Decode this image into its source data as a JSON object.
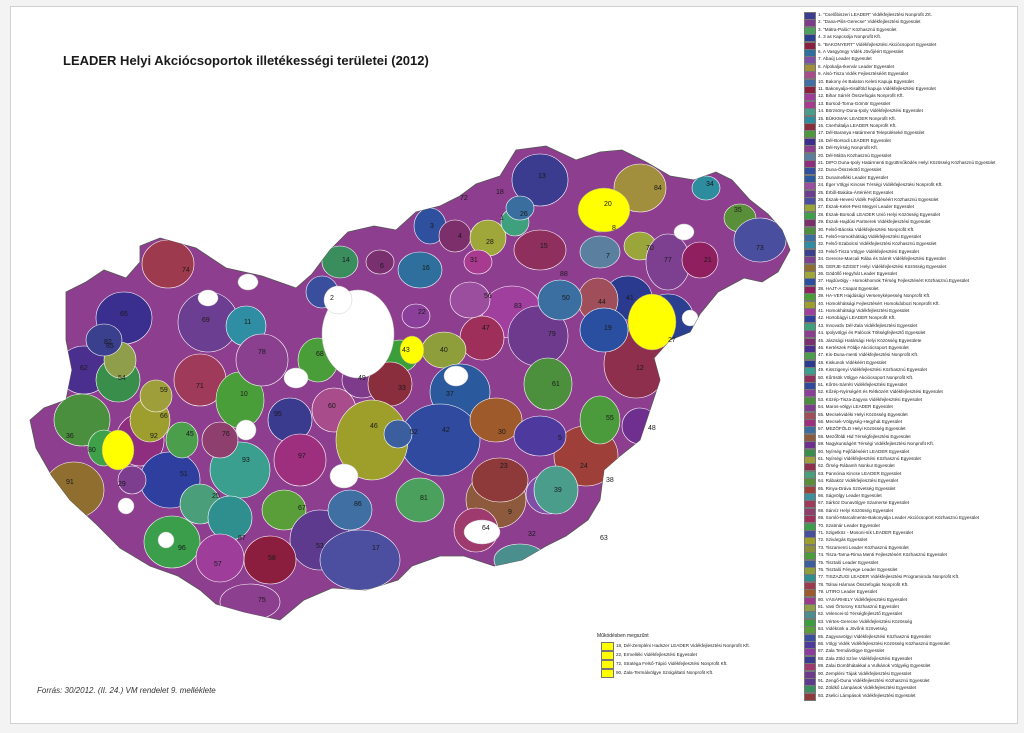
{
  "map": {
    "title": "LEADER Helyi Akciócsoportok illetékességi területei (2012)",
    "source": "Forrás: 30/2012. (II. 24.) VM rendelet 9. melléklete",
    "process_title": "Működésben megszűnt",
    "process_items": [
      {
        "label": "18, Dél-Zempléni Hadszer LEADER Vidékfejlesztési Nonprofit Kft.",
        "color": "#ffff00"
      },
      {
        "label": "22, Ermelléki Vidékfejlesztési Egyesület",
        "color": "#ffff00"
      },
      {
        "label": "72, Stratéga Felső-Tápió Vidékfejlesztési Nonprofit Kft.",
        "color": "#ffff00"
      },
      {
        "label": "90, Zala-Termálvölgye Szolgáltató Nonprofit Kft.",
        "color": "#ffff00"
      }
    ],
    "region_labels": [
      "13",
      "84",
      "34",
      "3",
      "4",
      "28",
      "1",
      "15",
      "26",
      "35",
      "73",
      "74",
      "2",
      "14",
      "16",
      "31",
      "7",
      "70",
      "77",
      "83",
      "41",
      "44",
      "12",
      "47",
      "40",
      "43",
      "79",
      "27",
      "20",
      "65",
      "69",
      "11",
      "68",
      "62",
      "36",
      "54",
      "71",
      "10",
      "85",
      "95",
      "49",
      "60",
      "33",
      "37",
      "61",
      "19",
      "78",
      "42",
      "23",
      "24",
      "46",
      "30",
      "5",
      "9",
      "39",
      "38",
      "92",
      "80",
      "91",
      "51",
      "93",
      "97",
      "25",
      "96",
      "87",
      "67",
      "53",
      "58",
      "57",
      "75",
      "17",
      "82",
      "66",
      "45",
      "29",
      "59",
      "76",
      "52",
      "32",
      "64",
      "81",
      "86",
      "55",
      "56",
      "50",
      "21",
      "6",
      "22",
      "48",
      "63",
      "72",
      "18",
      "88",
      "8"
    ],
    "legend": [
      {
        "label": "1. \"Cselőbiszeri LEADER\" Vidékfejlesztési Nonprofit Zrt.",
        "color": "#3b3b8f"
      },
      {
        "label": "2. \"Dana-Pilis-Gerecse\" Vidékfejlesztési Egyesület",
        "color": "#7e3b8c"
      },
      {
        "label": "3. \"Mátra-Palóc\" Közhasznú Egyesület",
        "color": "#4aa05c"
      },
      {
        "label": "4. 3 as Kapcsolja Nonprofit Kft.",
        "color": "#2a3f8f"
      },
      {
        "label": "5. \"BAKONYERT\" Vidékfejlesztési Akciócsoport Egyesület",
        "color": "#8b1e3f"
      },
      {
        "label": "6. A Vasgyöngy Vidék Jövőjéért Egyesület",
        "color": "#2e6f9e"
      },
      {
        "label": "7. Abaúj Leader Egyesület",
        "color": "#7f4fa8"
      },
      {
        "label": "8. Alpokalja-Ikervár Leader Egyesület",
        "color": "#a28f3e"
      },
      {
        "label": "9. Alsó-Tisza Vidék Fejlesztéséért Egyesület",
        "color": "#a84c8c"
      },
      {
        "label": "10. Bakony és Balaton Keleti Kapuja Egyesület",
        "color": "#3f6fa3"
      },
      {
        "label": "11. Bakonyalja-Kisalföld kapuja Vidékfejlesztési Egyesület",
        "color": "#8c1f3c"
      },
      {
        "label": "12. Bihar Sárrét Összefogás Nonprofit Kft.",
        "color": "#9e3e9a"
      },
      {
        "label": "13. Borsod-Torna-Gömör Egyesület",
        "color": "#a83b8f"
      },
      {
        "label": "14. Börzsöny-Duna-Ipoly Vidékfejlesztési Egyesület",
        "color": "#4a9d8a"
      },
      {
        "label": "15. BÜKKMAK LEADER Nonprofit Kft.",
        "color": "#2d8c9e"
      },
      {
        "label": "16. Cserhátalja LEADER Nonprofit Kft.",
        "color": "#8a2d3d"
      },
      {
        "label": "17. Dél-Baranya Határmenti Településeké Egyesület",
        "color": "#4b9b3d"
      },
      {
        "label": "18. Dél-Borsodi LEADER Egyesület",
        "color": "#3a2f8f"
      },
      {
        "label": "19. Dél-Nyírség Nonprofit Kft.",
        "color": "#8d3f8f"
      },
      {
        "label": "20. Dél-Mátra Közhasznú Egyesület",
        "color": "#5b7f9e"
      },
      {
        "label": "21. DIPO Duna-Ipoly Határmenti Együttműködés Helyi Közösség Közhasznú Egyesület",
        "color": "#8f2d7e"
      },
      {
        "label": "22. Duna-Összekötő Egyesület",
        "color": "#2f4f9f"
      },
      {
        "label": "23. Dunamelléki Leader Egyesület",
        "color": "#2a5a9d"
      },
      {
        "label": "24. Éger Völgyi Kincsei Térségi Vidékfejlesztési Nonprofit Kft.",
        "color": "#9c4e9e"
      },
      {
        "label": "25. Érből-Bakáta-Ártéréért Egyesület",
        "color": "#6b3e91"
      },
      {
        "label": "26. Észak-Hevesi Vidék Fejlődéséért Közhasznú Egyesület",
        "color": "#4c4ea0"
      },
      {
        "label": "27. Észak-Kelet-Pest Megyei Leader Egyesület",
        "color": "#9aa63a"
      },
      {
        "label": "28. Észak-Borsodi LEADER Unió Helyi Közösség Egyesület",
        "color": "#3fa04a"
      },
      {
        "label": "29. Észak-Hajdúsi Partnerek Vidékfejlesztési Egyesület",
        "color": "#7d2f6b"
      },
      {
        "label": "30. Felső-Bácska Vidékfejlesztési Nonprofit Kft.",
        "color": "#4c8f3d"
      },
      {
        "label": "31. Felső-Homokhátság Vidékfejlesztési Egyesület",
        "color": "#3b6fa2"
      },
      {
        "label": "32. Felső-Szabolcsi Vidékfejlesztési Közhasznú Egyesület",
        "color": "#2f8ea3"
      },
      {
        "label": "33. Felső-Tisza Völgye Vidékfejlesztési Egyesület",
        "color": "#3a3f8e"
      },
      {
        "label": "34. Gerecse-Marcali Rába és Sárrét Vidékfejlesztési Egyesület",
        "color": "#7d3f8f"
      },
      {
        "label": "35. GERJE-SZIGET Helyi Vidékfejlesztési Közösség Egyesület",
        "color": "#8f6e2f"
      },
      {
        "label": "36. Gödöllő Hegyhát Leader Egyesület",
        "color": "#9fa63a"
      },
      {
        "label": "37. Hajdúvölgy - Homokhomok Térség Fejlesztésért Közhasznú Egyesület",
        "color": "#2b4fa0"
      },
      {
        "label": "38. HAJT-A Csapat Egyesület",
        "color": "#8f1f5e"
      },
      {
        "label": "39. HA-VER Hajdúsági Versenyképesség Nonprofit Kft.",
        "color": "#4a9e3a"
      },
      {
        "label": "40. Homokhátsági Fejlesztésért Homokdobozi Nonprofit Kft.",
        "color": "#9e9e2f"
      },
      {
        "label": "41. Homokhátsági Vidékfejlesztési Egyesület",
        "color": "#a03f9e"
      },
      {
        "label": "42. Hortobágyi LEADER Nonprofit Kft.",
        "color": "#2f3fa0"
      },
      {
        "label": "43. Innovatív Dél-Zala Vidékfejlesztési Egyesület",
        "color": "#3fa07e"
      },
      {
        "label": "44. Ipolyvölgyi és Palócok Töltségfejlesztő Egyesület",
        "color": "#8a3f8f"
      },
      {
        "label": "45. Jászsági Határsági Helyi Közösség Egyesülete",
        "color": "#7a2f6e"
      },
      {
        "label": "46. Kertészek Földje Akciócsoport Egyesület",
        "color": "#4b2f8f"
      },
      {
        "label": "47. Kis-Duna-menti Vidékfejlesztési Nonprofit Kft.",
        "color": "#4a9e4c"
      },
      {
        "label": "48. Kiskunok Vidékéért Egyesület",
        "color": "#2a3a8e"
      },
      {
        "label": "49. Kisszigenyi Vidékfejlesztési Közhasznú Egyesület",
        "color": "#3b9f8f"
      },
      {
        "label": "50. Kőrösök Völgye Akciócsoport Nonprofit Kft.",
        "color": "#8e2f5e"
      },
      {
        "label": "51. Kőrös-Sárréti Vidékfejlesztési Egyesület",
        "color": "#2f4a9e"
      },
      {
        "label": "52. Kőzép-Nyírségért és Rétközért Vidékfejlesztési Egyesület",
        "color": "#8c3f9a"
      },
      {
        "label": "53. Közép-Tisza-Zagyva Vidékfejlesztési Egyesület",
        "color": "#4a8f3e"
      },
      {
        "label": "54. Maros-völgyi LEADER Egyesület",
        "color": "#7e3e8f"
      },
      {
        "label": "55. Mecsekvidéki Helyi Közösség Egyesület",
        "color": "#9f4e5a"
      },
      {
        "label": "56. Mecsek-Völgység-Hegyhát Egyesület",
        "color": "#9e2f7e"
      },
      {
        "label": "57. MEZÖFÖLD Helyi Közösség Egyesület",
        "color": "#3a6e9e"
      },
      {
        "label": "58. Mezőföldi Hid Térségfejlesztési Egyesület",
        "color": "#8e5a3e"
      },
      {
        "label": "59. Nagykunságért Térségi Vidékfejlesztési Nonprofit Kft.",
        "color": "#6e2f8f"
      },
      {
        "label": "60. Nyírség Fejlődéséért LEADER Egyesület",
        "color": "#3a8e4c"
      },
      {
        "label": "61. Nyírségi Vidékfejlesztési Közhasznú Egyesület",
        "color": "#9e9e3a"
      },
      {
        "label": "62. Őrség-Rábamh Nonkur Egyesület",
        "color": "#8f2f4e"
      },
      {
        "label": "63. Pannónia Kincse LEADER Egyesület",
        "color": "#4a9e7a"
      },
      {
        "label": "64. Rábaköz Vidékfejlesztési Egyesület",
        "color": "#5a8f3a"
      },
      {
        "label": "65. Rinya-Dráva Szövetség Egyesület",
        "color": "#9e3f3a"
      },
      {
        "label": "66. Ságvölgy Leader Egyesület",
        "color": "#3f8f9e"
      },
      {
        "label": "67. Sárköz Dunavölgye Szamerse Egyesület",
        "color": "#a03a5a"
      },
      {
        "label": "68. Sárvíz Helyi Közösség Egyesület",
        "color": "#8f3f6e"
      },
      {
        "label": "69. Somló-Marcalmente-Bakonyalja Leader Akciócsoport Közhasznú Egyesület",
        "color": "#9e2f5a"
      },
      {
        "label": "70. Szatmár Leader Egyesület",
        "color": "#3a9e4a"
      },
      {
        "label": "71. Szigetköz - Mosoni-sík LEADER Egyesület",
        "color": "#4a4e9e"
      },
      {
        "label": "72. Szivárgás Egyesület",
        "color": "#9e9e2a"
      },
      {
        "label": "73. Tiszamenti Leader Közhasznú Egyesület",
        "color": "#8e8e3a"
      },
      {
        "label": "74. Tisza-Tarna-Rima Menti Fejlesztésért Közhasznú Egyesület",
        "color": "#4a9e3a"
      },
      {
        "label": "75. Tisztaló Leader Egyesület",
        "color": "#3a5e9e"
      },
      {
        "label": "76. Tisztaló Fényege Leader Egyesület",
        "color": "#8e9e3a"
      },
      {
        "label": "77. TISZAZUGI LEADER Vidékfejlesztési Programiroda Nonprofit Kft.",
        "color": "#2f8e8e"
      },
      {
        "label": "78. Tolnai Hármas Összefogás Nonprofit Kft.",
        "color": "#9e3a4e"
      },
      {
        "label": "79. UTIRO Leader Egyesület",
        "color": "#9e5a2a"
      },
      {
        "label": "80. VÁSÁRHELY Vidékfejlesztési Egyesület",
        "color": "#9e3a8e"
      },
      {
        "label": "81. Vasi Őrtorony Közhasznú Egyesület",
        "color": "#8e9e4a"
      },
      {
        "label": "82. Velencei-tó Térségfejlesztő Egyesület",
        "color": "#4a8e8e"
      },
      {
        "label": "83. Vértes-Gerecse Vidékfejlesztési Közösség",
        "color": "#3a9e3a"
      },
      {
        "label": "84. Vidékünk a Jövőnk Szövetség",
        "color": "#5a9e3a"
      },
      {
        "label": "85. Zagyvavölgyi Vidékfejlesztési Közhasznú Egyesület",
        "color": "#3a4e9e"
      },
      {
        "label": "86. Völgy Vidék Vidékfejlesztési Közösség Közhasznú Egyesület",
        "color": "#4e3a9e"
      },
      {
        "label": "87. Zala Termálvölgye Egyesület",
        "color": "#8e3a9e"
      },
      {
        "label": "88. Zala Zöld Szíve Vidékfejlesztési Egyesület",
        "color": "#3a3a8e"
      },
      {
        "label": "89. Zalai Dombhátakkal a Vulkánok Völgyéig Egyesület",
        "color": "#9e3a6e"
      },
      {
        "label": "90. Zempléni Tájak Vidékfejlesztési Egyesület",
        "color": "#6e3a8e"
      },
      {
        "label": "91. Zengő-Duna Vidékfejlesztési Közhasznú Egyesület",
        "color": "#5e3a8e"
      },
      {
        "label": "92. Zöldkő Lámpások Vidékfejlesztési Egyesület",
        "color": "#3a8e5e"
      },
      {
        "label": "93. Zselici Lámpások Vidékfejlesztési Egyesület",
        "color": "#8e3a3a"
      }
    ]
  }
}
